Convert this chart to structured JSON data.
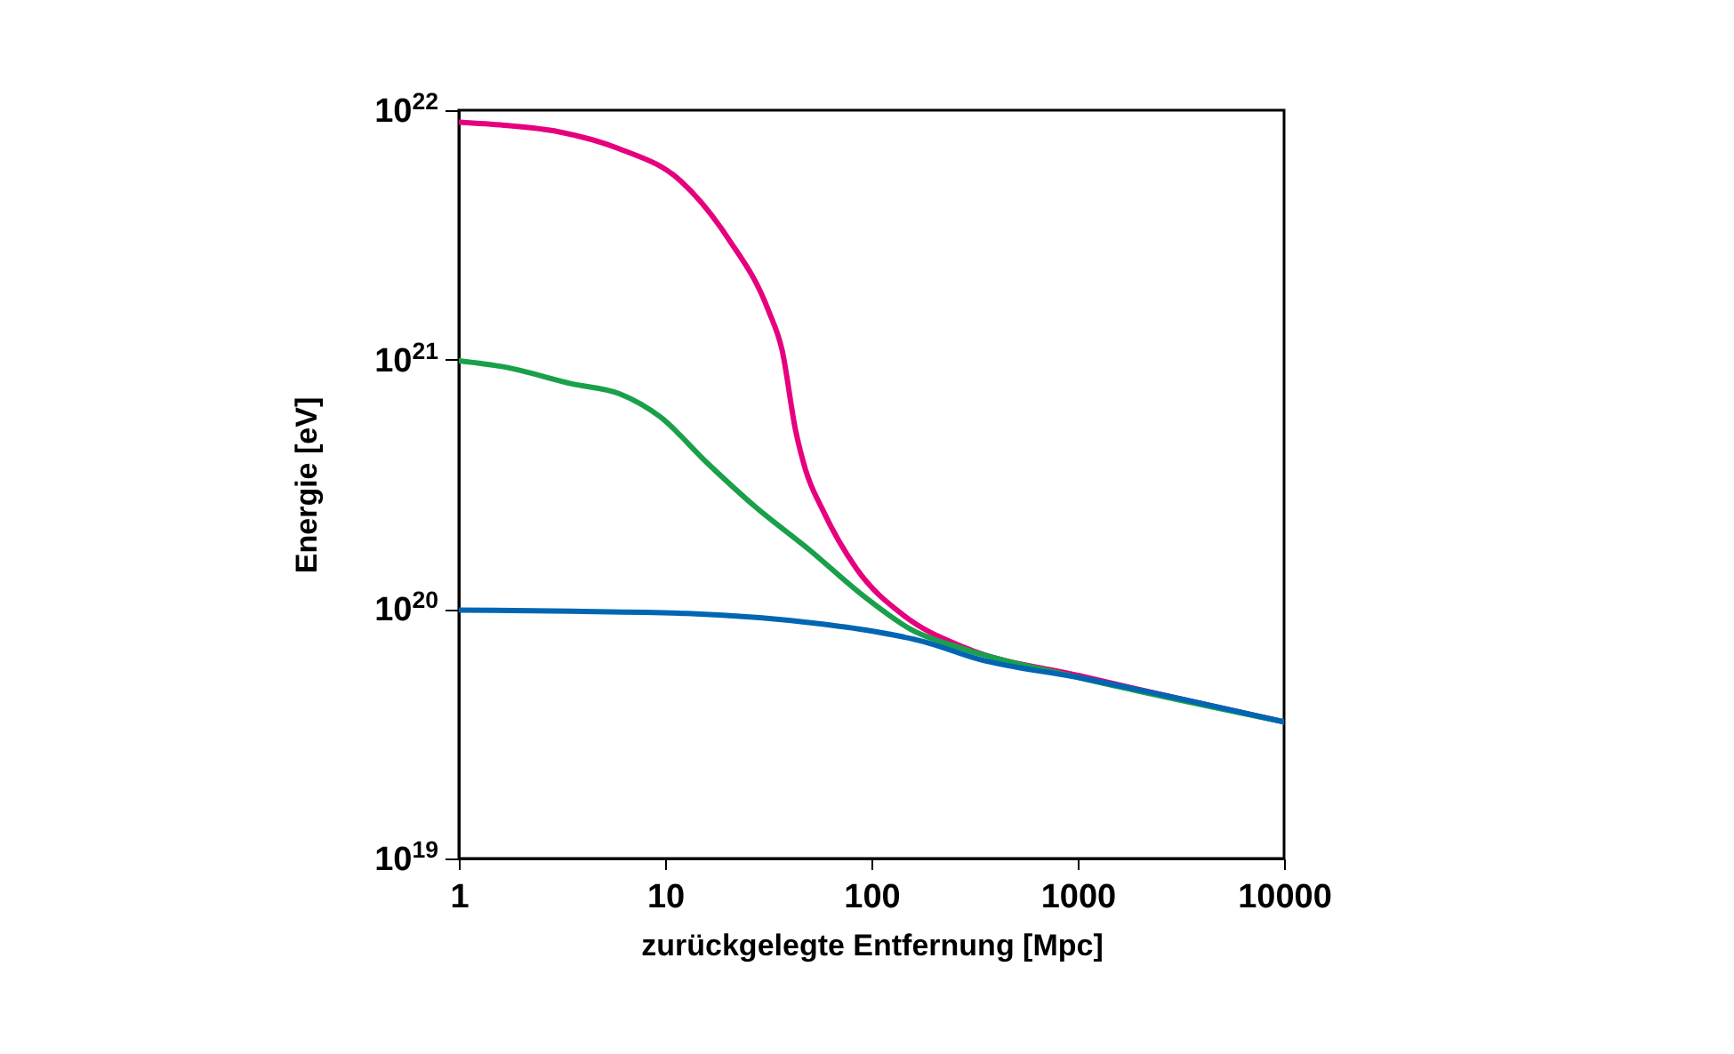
{
  "chart_data": {
    "type": "line",
    "xlabel": "zurückgelegte Entfernung [Mpc]",
    "ylabel": "Energie [eV]",
    "log": "xy",
    "grid": false,
    "legend": false,
    "marker": "none",
    "line_style": "solid",
    "xlim": [
      1,
      10000
    ],
    "xticks": [
      1,
      10,
      100,
      1000,
      10000
    ],
    "ylim": [
      1e+19,
      1e+22
    ],
    "yticks": [
      {
        "value": 1e+19,
        "label": "10$^{19}$"
      },
      {
        "value": 1e+20,
        "label": "10$^{20}$"
      },
      {
        "value": 1e+21,
        "label": "10$^{21}$"
      },
      {
        "value": 1e+22,
        "label": "10$^{22}$"
      }
    ],
    "series": [
      {
        "color": "#e6007e",
        "x": [
          1,
          1.66,
          3.04,
          6,
          11.9,
          20.1,
          31.7,
          36.9,
          42.9,
          48,
          58,
          84.7,
          144,
          284,
          1028,
          10000
        ],
        "values": [
          8.95e+21,
          8.7e+21,
          8.2e+21,
          7e+21,
          5.2e+21,
          3.08e+21,
          1.57e+21,
          1.09e+21,
          5.2e+20,
          3.6e+20,
          2.5e+20,
          1.45e+20,
          9.4e+19,
          7e+19,
          5.4e+19,
          3.53e+19
        ]
      },
      {
        "color": "#1aa04a",
        "x": [
          1,
          1.66,
          3.53,
          6,
          9.45,
          16,
          27.2,
          49.9,
          91.3,
          155,
          284,
          1028,
          10000
        ],
        "values": [
          9.9e+20,
          9.35e+20,
          8e+20,
          7.3e+20,
          5.9e+20,
          3.85e+20,
          2.58e+20,
          1.73e+20,
          1.13e+20,
          8.3e+19,
          6.9e+19,
          5.3e+19,
          3.53e+19
        ]
      },
      {
        "color": "#0066b3",
        "x": [
          1,
          3.53,
          12.8,
          58,
          106,
          180,
          330,
          1028,
          10000
        ],
        "values": [
          9.9e+19,
          9.8e+19,
          9.6e+19,
          8.7e+19,
          8.1e+19,
          7.4e+19,
          6.3e+19,
          5.3e+19,
          3.53e+19
        ]
      }
    ]
  }
}
